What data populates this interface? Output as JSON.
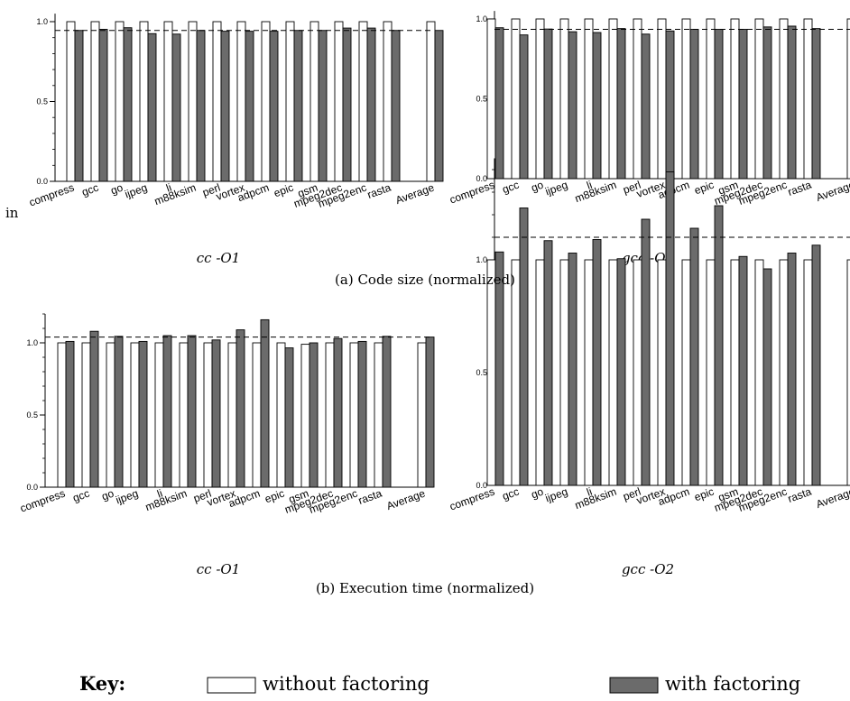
{
  "legend": {
    "key_label": "Key:",
    "items": [
      {
        "name": "without factoring",
        "color": "#ffffff"
      },
      {
        "name": "with factoring",
        "color": "#6b6b6b"
      }
    ]
  },
  "stray_text": "in",
  "captions": {
    "row_a": "(a)  Code size (normalized)",
    "row_b": "(b)  Execution time (normalized)"
  },
  "colors": {
    "without": "#ffffff",
    "with": "#6b6b6b",
    "axis": "#000000",
    "reference": "#000000"
  },
  "chart_data": [
    {
      "type": "bar",
      "subtitle": "cc -O1",
      "categories": [
        "compress",
        "gcc",
        "go",
        "ijpeg",
        "li",
        "m88ksim",
        "perl",
        "vortex",
        "adpcm",
        "epic",
        "gsm",
        "mpeg2dec",
        "mpeg2enc",
        "rasta",
        "Average"
      ],
      "series": [
        {
          "name": "without factoring",
          "values": [
            1,
            1,
            1,
            1,
            1,
            1,
            1,
            1,
            1,
            1,
            1,
            1,
            1,
            1,
            1
          ]
        },
        {
          "name": "with factoring",
          "values": [
            0.945,
            0.952,
            0.962,
            0.925,
            0.922,
            0.945,
            0.94,
            0.94,
            0.94,
            0.945,
            0.945,
            0.96,
            0.96,
            0.945,
            0.945
          ]
        }
      ],
      "reference_line": 0.945,
      "ylim": [
        0,
        1.05
      ],
      "yticks": [
        0.0,
        0.5,
        1.0
      ],
      "ytick_labels": [
        "0.0",
        "0.5",
        "1.0"
      ]
    },
    {
      "type": "bar",
      "subtitle": "gcc -O2",
      "categories": [
        "compress",
        "gcc",
        "go",
        "ijpeg",
        "li",
        "m88ksim",
        "perl",
        "vortex",
        "adpcm",
        "epic",
        "gsm",
        "mpeg2dec",
        "mpeg2enc",
        "rasta",
        "Average"
      ],
      "series": [
        {
          "name": "without factoring",
          "values": [
            1,
            1,
            1,
            1,
            1,
            1,
            1,
            1,
            1,
            1,
            1,
            1,
            1,
            1,
            1
          ]
        },
        {
          "name": "with factoring",
          "values": [
            0.945,
            0.9,
            0.937,
            0.92,
            0.915,
            0.94,
            0.905,
            0.925,
            0.935,
            0.935,
            0.935,
            0.95,
            0.955,
            0.94,
            0.935
          ]
        }
      ],
      "reference_line": 0.935,
      "ylim": [
        0,
        1.05
      ],
      "yticks": [
        0.0,
        0.5,
        1.0
      ],
      "ytick_labels": [
        "0.0",
        "0.5",
        "1.0"
      ]
    },
    {
      "type": "bar",
      "subtitle": "cc -O1",
      "categories": [
        "compress",
        "gcc",
        "go",
        "ijpeg",
        "li",
        "m88ksim",
        "perl",
        "vortex",
        "adpcm",
        "epic",
        "gsm",
        "mpeg2dec",
        "mpeg2enc",
        "rasta",
        "Average"
      ],
      "series": [
        {
          "name": "without factoring",
          "values": [
            1,
            1,
            1,
            1,
            1,
            1,
            1,
            1,
            1,
            1,
            0.99,
            1,
            1,
            1,
            1
          ]
        },
        {
          "name": "with factoring",
          "values": [
            1.01,
            1.08,
            1.045,
            1.01,
            1.05,
            1.05,
            1.02,
            1.09,
            1.16,
            0.965,
            1.0,
            1.03,
            1.01,
            1.045,
            1.04
          ]
        }
      ],
      "reference_line": 1.04,
      "ylim": [
        0,
        1.2
      ],
      "yticks": [
        0.0,
        0.5,
        1.0
      ],
      "ytick_labels": [
        "0.0",
        "0.5",
        "1.0"
      ]
    },
    {
      "type": "bar",
      "subtitle": "gcc -O2",
      "categories": [
        "compress",
        "gcc",
        "go",
        "ijpeg",
        "li",
        "m88ksim",
        "perl",
        "vortex",
        "adpcm",
        "epic",
        "gsm",
        "mpeg2dec",
        "mpeg2enc",
        "rasta",
        "Average"
      ],
      "series": [
        {
          "name": "without factoring",
          "values": [
            1,
            1,
            1,
            1,
            1,
            1,
            1,
            1,
            1,
            1,
            1,
            1,
            1,
            1,
            1
          ]
        },
        {
          "name": "with factoring",
          "values": [
            1.035,
            1.23,
            1.085,
            1.03,
            1.09,
            1.005,
            1.18,
            1.39,
            1.14,
            1.24,
            1.015,
            0.96,
            1.03,
            1.065,
            1.1
          ]
        }
      ],
      "reference_line": 1.1,
      "ylim": [
        0,
        1.45
      ],
      "yticks": [
        0.0,
        0.5,
        1.0
      ],
      "ytick_labels": [
        "0.0",
        "0.5",
        "1.0"
      ]
    }
  ]
}
